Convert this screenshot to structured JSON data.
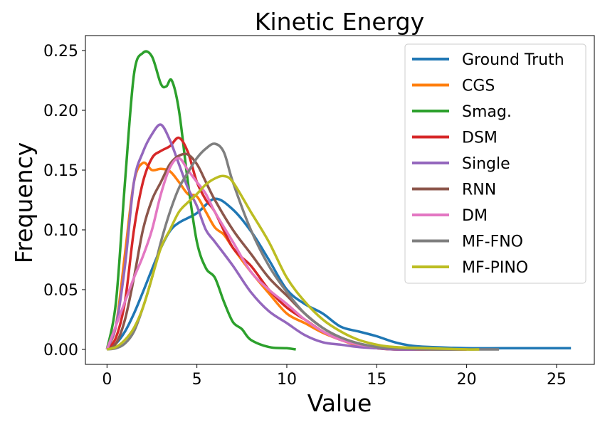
{
  "chart_data": {
    "type": "line",
    "title": "Kinetic Energy",
    "xlabel": "Value",
    "ylabel": "Frequency",
    "xlim": [
      -1.2,
      27.1
    ],
    "ylim": [
      -0.0125,
      0.2625
    ],
    "xticks": [
      0,
      5,
      10,
      15,
      20,
      25
    ],
    "xtick_labels": [
      "0",
      "5",
      "10",
      "15",
      "20",
      "25"
    ],
    "yticks": [
      0.0,
      0.05,
      0.1,
      0.15,
      0.2,
      0.25
    ],
    "ytick_labels": [
      "0.00",
      "0.05",
      "0.10",
      "0.15",
      "0.20",
      "0.25"
    ],
    "grid": false,
    "legend_position": "top-right",
    "series": [
      {
        "name": "Ground Truth",
        "color": "#1f77b4",
        "x": [
          0,
          0.5,
          1,
          1.5,
          2,
          2.5,
          3,
          3.5,
          4,
          5,
          6,
          7,
          8,
          9,
          10,
          11,
          12,
          13,
          14,
          15,
          16,
          17,
          18,
          20,
          22,
          24,
          25.8
        ],
        "y": [
          0.0,
          0.005,
          0.015,
          0.03,
          0.048,
          0.067,
          0.085,
          0.099,
          0.106,
          0.114,
          0.126,
          0.117,
          0.099,
          0.075,
          0.05,
          0.038,
          0.03,
          0.019,
          0.015,
          0.011,
          0.006,
          0.003,
          0.002,
          0.001,
          0.001,
          0.001,
          0.001
        ]
      },
      {
        "name": "CGS",
        "color": "#ff7f0e",
        "x": [
          0,
          0.5,
          1,
          1.5,
          2,
          2.5,
          3,
          3.5,
          4,
          4.5,
          5,
          5.5,
          6,
          6.5,
          7,
          8,
          9,
          10,
          11,
          12,
          13,
          14,
          15,
          16,
          17,
          18,
          20
        ],
        "y": [
          0.0,
          0.02,
          0.08,
          0.14,
          0.156,
          0.15,
          0.151,
          0.149,
          0.14,
          0.13,
          0.128,
          0.115,
          0.102,
          0.096,
          0.085,
          0.065,
          0.047,
          0.03,
          0.022,
          0.014,
          0.008,
          0.003,
          0.001,
          0.0,
          0.0,
          0.0,
          0.0
        ]
      },
      {
        "name": "Smag.",
        "color": "#2ca02c",
        "x": [
          0,
          0.5,
          1,
          1.5,
          2,
          2.5,
          3,
          3.3,
          3.6,
          4,
          4.5,
          5,
          5.5,
          6,
          6.5,
          7,
          7.5,
          8,
          9,
          10,
          10.5
        ],
        "y": [
          0.0,
          0.04,
          0.14,
          0.23,
          0.248,
          0.245,
          0.222,
          0.22,
          0.225,
          0.2,
          0.14,
          0.09,
          0.068,
          0.06,
          0.04,
          0.023,
          0.017,
          0.008,
          0.002,
          0.001,
          0.0
        ]
      },
      {
        "name": "DSM",
        "color": "#d62728",
        "x": [
          0,
          0.5,
          1,
          1.5,
          2,
          2.5,
          3,
          3.5,
          4,
          4.5,
          5,
          5.5,
          6,
          7,
          8,
          9,
          10,
          11,
          12,
          13,
          14,
          15,
          16,
          18,
          20
        ],
        "y": [
          0.0,
          0.01,
          0.04,
          0.1,
          0.14,
          0.16,
          0.166,
          0.17,
          0.177,
          0.165,
          0.14,
          0.125,
          0.115,
          0.085,
          0.07,
          0.05,
          0.035,
          0.025,
          0.015,
          0.008,
          0.004,
          0.001,
          0.0,
          0.0,
          0.0
        ]
      },
      {
        "name": "Single",
        "color": "#9467bd",
        "x": [
          0,
          0.5,
          1,
          1.5,
          2,
          2.5,
          3,
          3.5,
          4,
          4.5,
          5,
          5.5,
          6,
          7,
          8,
          9,
          10,
          11,
          12,
          13,
          14,
          15,
          16,
          18
        ],
        "y": [
          0.0,
          0.02,
          0.07,
          0.14,
          0.165,
          0.18,
          0.188,
          0.175,
          0.155,
          0.135,
          0.12,
          0.1,
          0.09,
          0.07,
          0.048,
          0.032,
          0.022,
          0.012,
          0.006,
          0.004,
          0.002,
          0.001,
          0.0,
          0.0
        ]
      },
      {
        "name": "RNN",
        "color": "#8c564b",
        "x": [
          0,
          0.5,
          1,
          1.5,
          2,
          2.5,
          3,
          3.5,
          4,
          4.5,
          5,
          5.5,
          6,
          7,
          8,
          9,
          10,
          11,
          12,
          13,
          14,
          15,
          16,
          18
        ],
        "y": [
          0.0,
          0.005,
          0.025,
          0.06,
          0.1,
          0.125,
          0.14,
          0.155,
          0.162,
          0.163,
          0.155,
          0.14,
          0.125,
          0.1,
          0.08,
          0.06,
          0.045,
          0.03,
          0.018,
          0.01,
          0.005,
          0.002,
          0.001,
          0.0
        ]
      },
      {
        "name": "DM",
        "color": "#e377c2",
        "x": [
          0,
          0.5,
          1,
          1.5,
          2,
          2.5,
          3,
          3.5,
          4,
          4.5,
          5,
          5.5,
          6,
          7,
          8,
          9,
          10,
          11,
          12,
          13,
          14,
          15,
          16,
          18
        ],
        "y": [
          0.0,
          0.02,
          0.04,
          0.06,
          0.078,
          0.1,
          0.13,
          0.152,
          0.16,
          0.15,
          0.14,
          0.13,
          0.115,
          0.09,
          0.065,
          0.05,
          0.038,
          0.025,
          0.015,
          0.008,
          0.004,
          0.002,
          0.001,
          0.0
        ]
      },
      {
        "name": "MF-FNO",
        "color": "#7f7f7f",
        "x": [
          0,
          0.5,
          1,
          1.5,
          2,
          2.5,
          3,
          3.5,
          4,
          4.5,
          5,
          5.5,
          6,
          6.5,
          7,
          8,
          9,
          10,
          11,
          12,
          13,
          14,
          15,
          16,
          18,
          20,
          21.8
        ],
        "y": [
          0.0,
          0.001,
          0.005,
          0.015,
          0.035,
          0.06,
          0.09,
          0.115,
          0.135,
          0.148,
          0.16,
          0.168,
          0.172,
          0.165,
          0.14,
          0.1,
          0.07,
          0.048,
          0.03,
          0.018,
          0.01,
          0.005,
          0.002,
          0.001,
          0.0,
          0.0,
          0.0
        ]
      },
      {
        "name": "MF-PINO",
        "color": "#bcbd22",
        "x": [
          0,
          0.5,
          1,
          1.5,
          2,
          2.5,
          3,
          3.5,
          4,
          4.5,
          5,
          5.5,
          6,
          6.5,
          7,
          8,
          9,
          10,
          11,
          12,
          13,
          14,
          15,
          16,
          18,
          20,
          20.7
        ],
        "y": [
          0.0,
          0.002,
          0.008,
          0.018,
          0.035,
          0.06,
          0.085,
          0.1,
          0.115,
          0.123,
          0.13,
          0.138,
          0.143,
          0.145,
          0.14,
          0.115,
          0.09,
          0.06,
          0.04,
          0.025,
          0.015,
          0.008,
          0.004,
          0.002,
          0.001,
          0.0,
          0.0
        ]
      }
    ]
  }
}
